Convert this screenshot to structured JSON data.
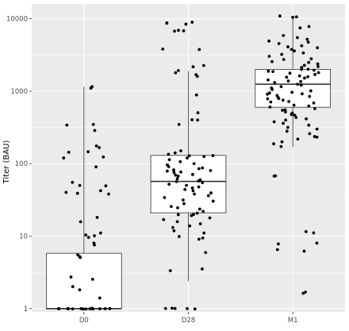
{
  "chart_data": {
    "type": "box",
    "title": "",
    "xlabel": "",
    "ylabel": "Titer (BAU)",
    "y_scale": "log10",
    "ylim": [
      0.9,
      16000
    ],
    "y_ticks": [
      1,
      10,
      100,
      1000,
      10000
    ],
    "y_tick_labels": [
      "1",
      "10",
      "100",
      "1000",
      "10000"
    ],
    "categories": [
      "D0",
      "D28",
      "M1"
    ],
    "grid": true,
    "legend": "none",
    "colors": {
      "panel": "#ebebeb",
      "grid": "#ffffff",
      "box_fill": "#ffffff",
      "box_stroke": "#333333",
      "point": "#000000"
    },
    "boxes": [
      {
        "category": "D0",
        "q1": 1.0,
        "median": 1.0,
        "q3": 5.8,
        "whisker_low": 1.0,
        "whisker_high": 1150
      },
      {
        "category": "D28",
        "q1": 21,
        "median": 57,
        "q3": 130,
        "whisker_low": 2.4,
        "whisker_high": 1900
      },
      {
        "category": "M1",
        "q1": 600,
        "median": 1250,
        "q3": 2000,
        "whisker_low": 170,
        "whisker_high": 11000
      }
    ],
    "points": {
      "D0": [
        1150,
        1120,
        350,
        345,
        290,
        175,
        165,
        145,
        145,
        125,
        120,
        90,
        55,
        50,
        50,
        42,
        40,
        39,
        38,
        18,
        16,
        11,
        10.5,
        10,
        9.5,
        8,
        7.5,
        5.5,
        5.3,
        5,
        2.7,
        2.5,
        2,
        1.8,
        1.4,
        1,
        1,
        1,
        1,
        1,
        1,
        1,
        1,
        1,
        1,
        1,
        1,
        1,
        1,
        1
      ],
      "D28": [
        9000,
        8800,
        8700,
        8500,
        7000,
        6800,
        6800,
        3800,
        3800,
        2300,
        2200,
        1900,
        1800,
        1700,
        1600,
        900,
        500,
        400,
        400,
        350,
        150,
        140,
        135,
        130,
        130,
        125,
        120,
        115,
        105,
        100,
        95,
        90,
        88,
        85,
        82,
        80,
        80,
        78,
        75,
        72,
        70,
        68,
        62,
        60,
        58,
        56,
        54,
        52,
        50,
        48,
        46,
        44,
        42,
        40,
        38,
        36,
        34,
        32,
        30,
        28,
        26,
        25,
        24,
        22,
        21,
        20,
        20,
        19,
        18,
        17,
        16,
        15,
        14,
        13,
        12,
        11,
        10,
        9.5,
        9,
        6,
        3.5,
        3.3,
        1,
        1,
        1,
        1,
        1
      ],
      "M1": [
        11000,
        10500,
        10500,
        7800,
        7500,
        5800,
        5500,
        5200,
        5000,
        4800,
        4500,
        4300,
        4100,
        4000,
        3800,
        3600,
        3400,
        3200,
        3000,
        2800,
        2700,
        2600,
        2500,
        2400,
        2300,
        2200,
        2100,
        2000,
        2000,
        1950,
        1900,
        1850,
        1800,
        1750,
        1700,
        1650,
        1600,
        1550,
        1500,
        1450,
        1400,
        1350,
        1300,
        1250,
        1200,
        1150,
        1100,
        1050,
        1000,
        980,
        950,
        920,
        900,
        880,
        850,
        820,
        800,
        780,
        750,
        720,
        700,
        680,
        650,
        620,
        600,
        580,
        560,
        540,
        520,
        500,
        480,
        460,
        440,
        420,
        400,
        380,
        360,
        340,
        320,
        300,
        280,
        260,
        240,
        230,
        220,
        200,
        190,
        170,
        68,
        67,
        11.5,
        11,
        8,
        7.8,
        6.5,
        6.2,
        1.7,
        1.65
      ]
    }
  }
}
